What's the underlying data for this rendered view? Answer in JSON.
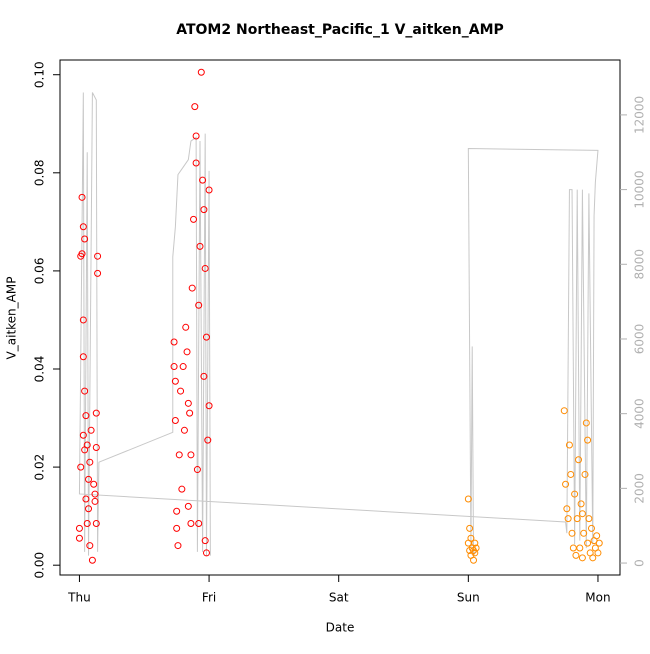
{
  "chart_data": {
    "type": "scatter",
    "title": "ATOM2 Northeast_Pacific_1 V_aitken_AMP",
    "xlabel": "Date",
    "ylabel": "V_aitken_AMP",
    "xlim": [
      -0.15,
      4.17
    ],
    "xticks": [
      {
        "value": 0,
        "label": "Thu"
      },
      {
        "value": 1,
        "label": "Fri"
      },
      {
        "value": 2,
        "label": "Sat"
      },
      {
        "value": 3,
        "label": "Sun"
      },
      {
        "value": 4,
        "label": "Mon"
      }
    ],
    "ylim": [
      -0.002,
      0.103
    ],
    "yticks": [
      {
        "value": 0,
        "label": "0.00"
      },
      {
        "value": 0.02,
        "label": "0.02"
      },
      {
        "value": 0.04,
        "label": "0.04"
      },
      {
        "value": 0.06,
        "label": "0.06"
      },
      {
        "value": 0.08,
        "label": "0.08"
      },
      {
        "value": 0.1,
        "label": "0.10"
      }
    ],
    "y2lim": [
      -320,
      13470
    ],
    "y2ticks": [
      0,
      2000,
      4000,
      6000,
      8000,
      10000,
      12000
    ],
    "series": [
      {
        "type": "scatter",
        "color": "#ff0000",
        "x": [
          0.0,
          0.0,
          0.01,
          0.01,
          0.02,
          0.02,
          0.03,
          0.03,
          0.03,
          0.03,
          0.04,
          0.04,
          0.04,
          0.05,
          0.05,
          0.06,
          0.06,
          0.07,
          0.07,
          0.08,
          0.08,
          0.09,
          0.1,
          0.11,
          0.12,
          0.13,
          0.13,
          0.14,
          0.14,
          0.13,
          0.12,
          0.73,
          0.73,
          0.74,
          0.74,
          0.75,
          0.75,
          0.76,
          0.77,
          0.78,
          0.79,
          0.8,
          0.81,
          0.82,
          0.83,
          0.84,
          0.85,
          0.86,
          0.87,
          0.88,
          0.89,
          0.9,
          0.9,
          0.91,
          0.92,
          0.93,
          0.94,
          0.95,
          0.96,
          0.97,
          0.97,
          0.98,
          0.99,
          1.0,
          1.0,
          0.98,
          0.96,
          0.92,
          0.86,
          0.84
        ],
        "values": [
          0.0075,
          0.0055,
          0.02,
          0.063,
          0.0635,
          0.075,
          0.069,
          0.0425,
          0.05,
          0.0265,
          0.0665,
          0.0355,
          0.0235,
          0.0135,
          0.0305,
          0.0245,
          0.0085,
          0.0175,
          0.0115,
          0.021,
          0.004,
          0.0275,
          0.001,
          0.0165,
          0.013,
          0.0085,
          0.031,
          0.0595,
          0.063,
          0.024,
          0.0145,
          0.0455,
          0.0405,
          0.0375,
          0.0295,
          0.011,
          0.0075,
          0.004,
          0.0225,
          0.0355,
          0.0155,
          0.0405,
          0.0275,
          0.0485,
          0.0435,
          0.012,
          0.031,
          0.0225,
          0.0565,
          0.0705,
          0.0935,
          0.082,
          0.0875,
          0.0195,
          0.0085,
          0.065,
          0.1005,
          0.0785,
          0.0725,
          0.005,
          0.0605,
          0.0465,
          0.0255,
          0.0325,
          0.0765,
          0.0025,
          0.0385,
          0.053,
          0.0085,
          0.033
        ]
      },
      {
        "type": "scatter",
        "color": "#ff8c00",
        "x": [
          3.0,
          3.0,
          3.01,
          3.01,
          3.02,
          3.02,
          3.03,
          3.04,
          3.05,
          3.06,
          3.04,
          3.05,
          3.74,
          3.75,
          3.76,
          3.77,
          3.78,
          3.79,
          3.8,
          3.81,
          3.82,
          3.83,
          3.84,
          3.85,
          3.86,
          3.87,
          3.88,
          3.89,
          3.9,
          3.91,
          3.92,
          3.93,
          3.94,
          3.95,
          3.96,
          3.97,
          3.98,
          3.99,
          4.0,
          4.01,
          3.92,
          3.88
        ],
        "values": [
          0.0135,
          0.0045,
          0.003,
          0.0075,
          0.002,
          0.0055,
          0.0035,
          0.001,
          0.0025,
          0.0035,
          0.003,
          0.0045,
          0.0315,
          0.0165,
          0.0115,
          0.0095,
          0.0245,
          0.0185,
          0.0065,
          0.0035,
          0.0145,
          0.002,
          0.0095,
          0.0215,
          0.0035,
          0.0125,
          0.0015,
          0.0065,
          0.0185,
          0.029,
          0.0045,
          0.0095,
          0.0025,
          0.0075,
          0.0015,
          0.005,
          0.0035,
          0.006,
          0.0025,
          0.0045,
          0.0255,
          0.0105
        ]
      },
      {
        "type": "line",
        "axis": "y2",
        "color": "#c8c8c8",
        "x": [
          3.05,
          3.04,
          3.03,
          3.02,
          3.0,
          4.0,
          3.98,
          3.97,
          3.96,
          3.93,
          3.91,
          3.88,
          3.86,
          3.84,
          3.82,
          3.8,
          3.78,
          3.76,
          3.75,
          0.0,
          0.02,
          0.03,
          0.04,
          0.06,
          0.07,
          0.1,
          0.13,
          0.14,
          0.15,
          0.72,
          0.72,
          0.74,
          0.76,
          0.8,
          0.84,
          0.86,
          0.9,
          0.91,
          0.93,
          0.95,
          0.97,
          0.98,
          1.0,
          1.01
        ],
        "values": [
          300,
          200,
          5800,
          400,
          11100,
          11050,
          10200,
          9300,
          500,
          9900,
          400,
          10000,
          600,
          10000,
          500,
          10000,
          10000,
          800,
          1100,
          1850,
          9000,
          12600,
          300,
          11000,
          200,
          12600,
          12400,
          300,
          2700,
          3500,
          8200,
          9000,
          10400,
          10600,
          10800,
          11300,
          11400,
          300,
          11300,
          300,
          11500,
          200,
          10500,
          200
        ]
      }
    ]
  }
}
